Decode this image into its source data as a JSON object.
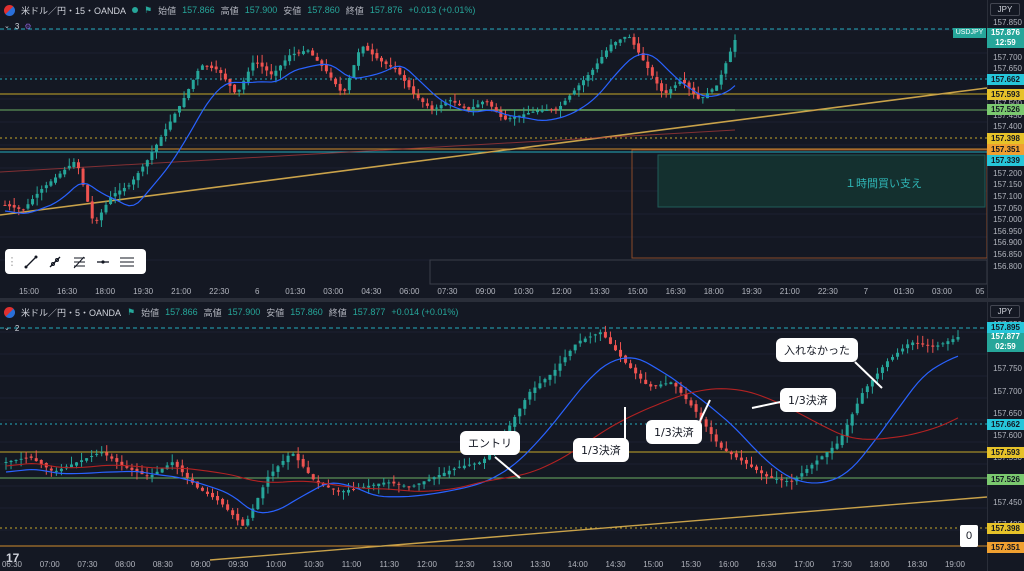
{
  "top": {
    "symbol": "米ドル／円・15・OANDA",
    "open_label": "始値",
    "open": "157.866",
    "high_label": "高値",
    "high": "157.900",
    "low_label": "安値",
    "low": "157.860",
    "close_label": "終値",
    "close": "157.876",
    "change": "+0.013 (+0.01%)",
    "indicator_count": "3",
    "currency": "JPY",
    "last_price": "157.876",
    "countdown": "12:59",
    "ticker_tag": "USDJPY",
    "price_labels": [
      "157.850",
      "157.800",
      "157.750",
      "157.700",
      "157.650",
      "157.600",
      "157.550",
      "157.500",
      "157.450",
      "157.400",
      "157.350",
      "157.300",
      "157.250",
      "157.200",
      "157.150",
      "157.100",
      "157.050",
      "157.000",
      "156.950",
      "156.900",
      "156.850",
      "156.800"
    ],
    "badges": [
      {
        "text": "157.662",
        "color": "#26c6da"
      },
      {
        "text": "157.593",
        "color": "#e6c229"
      },
      {
        "text": "157.526",
        "color": "#7bc96f"
      },
      {
        "text": "157.398",
        "color": "#e6c229"
      },
      {
        "text": "157.351",
        "color": "#f0a030"
      },
      {
        "text": "157.339",
        "color": "#26c6da"
      }
    ],
    "time_labels": [
      "15:00",
      "16:30",
      "18:00",
      "19:30",
      "21:00",
      "22:30",
      "6",
      "01:30",
      "03:00",
      "04:30",
      "06:00",
      "07:30",
      "09:00",
      "10:30",
      "12:00",
      "13:30",
      "15:00",
      "16:30",
      "18:00",
      "19:30",
      "21:00",
      "22:30",
      "7",
      "01:30",
      "03:00",
      "05"
    ],
    "zone_label": "１時間買い支え"
  },
  "bottom": {
    "symbol": "米ドル／円・5・OANDA",
    "open_label": "始値",
    "open": "157.866",
    "high_label": "高値",
    "high": "157.900",
    "low_label": "安値",
    "low": "157.860",
    "close_label": "終値",
    "close": "157.877",
    "change": "+0.014 (+0.01%)",
    "indicator_count": "2",
    "currency": "JPY",
    "last_price": "157.877",
    "countdown": "02:59",
    "price_labels": [
      "157.850",
      "157.800",
      "157.750",
      "157.700",
      "157.650",
      "157.600",
      "157.550",
      "157.500",
      "157.450",
      "157.400",
      "157.350"
    ],
    "badges": [
      {
        "text": "157.895",
        "color": "#26c6da"
      },
      {
        "text": "157.662",
        "color": "#26c6da"
      },
      {
        "text": "157.593",
        "color": "#e6c229"
      },
      {
        "text": "157.526",
        "color": "#7bc96f"
      },
      {
        "text": "157.398",
        "color": "#e6c229"
      },
      {
        "text": "157.351",
        "color": "#f0a030"
      }
    ],
    "time_labels": [
      "06:30",
      "07:00",
      "07:30",
      "08:00",
      "08:30",
      "09:00",
      "09:30",
      "10:00",
      "10:30",
      "11:00",
      "11:30",
      "12:00",
      "12:30",
      "13:00",
      "13:30",
      "14:00",
      "14:30",
      "15:00",
      "15:30",
      "16:00",
      "16:30",
      "17:00",
      "17:30",
      "18:00",
      "18:30",
      "19:00"
    ],
    "annotations": {
      "entry": "エントリ",
      "settle1": "1/3決済",
      "settle2": "1/3決済",
      "settle3": "1/3決済",
      "missed": "入れなかった"
    },
    "zero_value": "0"
  },
  "colors": {
    "up": "#26a69a",
    "down": "#ef5350",
    "ma_blue": "#2962ff",
    "ma_red": "#b22222",
    "level_yellow": "#e6c229",
    "level_green": "#7bc96f",
    "level_cyan": "#26c6da",
    "trend": "#c9a24a"
  }
}
